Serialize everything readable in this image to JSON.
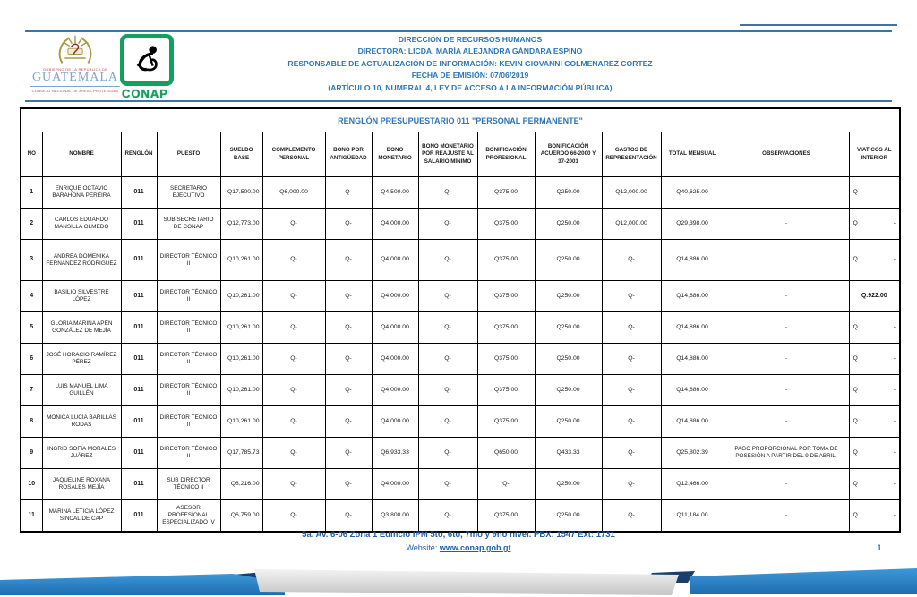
{
  "header": {
    "lines": [
      "DIRECCIÓN DE RECURSOS HUMANOS",
      "DIRECTORA: LICDA. MARÍA ALEJANDRA GÁNDARA ESPINO",
      "RESPONSABLE DE ACTUALIZACIÓN DE INFORMACIÓN: KEVIN GIOVANNI COLMENAREZ CORTEZ",
      "FECHA DE EMISIÓN: 07/06/2019",
      "(ARTÍCULO 10, NUMERAL 4, LEY DE ACCESO A LA INFORMACIÓN PÚBLICA)"
    ],
    "logos": {
      "guatemala": {
        "top_text": "GOBIERNO DE LA REPÚBLICA DE",
        "title": "GUATEMALA",
        "bottom_text": "CONSEJO NACIONAL DE ÁREAS PROTEGIDAS"
      },
      "conap": {
        "label": "CONAP"
      }
    },
    "colors": {
      "accent_blue": "#2E75B6",
      "conap_green": "#12A05F",
      "guatemala_gold": "#A89B45",
      "logo_red": "#B94A48"
    }
  },
  "table": {
    "title": "RENGLÓN PRESUPUESTARIO 011 \"PERSONAL PERMANENTE\"",
    "columns": [
      {
        "key": "no",
        "label": "NO"
      },
      {
        "key": "nombre",
        "label": "NOMBRE"
      },
      {
        "key": "renglon",
        "label": "RENGLÓN"
      },
      {
        "key": "puesto",
        "label": "PUESTO"
      },
      {
        "key": "sueldo_base",
        "label": "SUELDO BASE"
      },
      {
        "key": "complemento_personal",
        "label": "COMPLEMENTO PERSONAL"
      },
      {
        "key": "bono_antiguedad",
        "label": "BONO POR ANTIGÜEDAD"
      },
      {
        "key": "bono_monetario",
        "label": "BONO MONETARIO"
      },
      {
        "key": "bono_reajuste",
        "label": "BONO MONETARIO POR REAJUSTE AL SALARIO MÍNIMO"
      },
      {
        "key": "bonificacion_profesional",
        "label": "BONIFICACIÓN PROFESIONAL"
      },
      {
        "key": "bonificacion_acuerdo",
        "label": "BONIFICACIÓN ACUERDO 66-2000 Y 37-2001"
      },
      {
        "key": "gastos_representacion",
        "label": "GASTOS DE REPRESENTACIÓN"
      },
      {
        "key": "total_mensual",
        "label": "TOTAL MENSUAL"
      },
      {
        "key": "observaciones",
        "label": "OBSERVACIONES"
      },
      {
        "key": "viaticos",
        "label": "VIATICOS AL INTERIOR"
      }
    ],
    "rows": [
      {
        "no": "1",
        "nombre": "ENRIQUE OCTAVIO BARAHONA PEREIRA",
        "renglon": "011",
        "puesto": "SECRETARIO EJECUTIVO",
        "sueldo_base": "Q17,500.00",
        "complemento_personal": "Q6,000.00",
        "bono_antiguedad": "Q-",
        "bono_monetario": "Q4,500.00",
        "bono_reajuste": "Q-",
        "bonificacion_profesional": "Q375.00",
        "bonificacion_acuerdo": "Q250.00",
        "gastos_representacion": "Q12,000.00",
        "total_mensual": "Q40,625.00",
        "observaciones": "-",
        "viaticos": {
          "pre": "Q",
          "val": "-"
        }
      },
      {
        "no": "2",
        "nombre": "CARLOS EDUARDO MANSILLA OLMEDO",
        "renglon": "011",
        "puesto": "SUB SECRETARIO DE CONAP",
        "sueldo_base": "Q12,773.00",
        "complemento_personal": "Q-",
        "bono_antiguedad": "Q-",
        "bono_monetario": "Q4,000.00",
        "bono_reajuste": "Q-",
        "bonificacion_profesional": "Q375.00",
        "bonificacion_acuerdo": "Q250.00",
        "gastos_representacion": "Q12,000.00",
        "total_mensual": "Q29,398.00",
        "observaciones": "-",
        "viaticos": {
          "pre": "Q",
          "val": "-"
        }
      },
      {
        "no": "3",
        "nombre": "ANDREA DOMENIKA FERNANDEZ RODRIGUEZ",
        "renglon": "011",
        "puesto": "DIRECTOR TÉCNICO II",
        "sueldo_base": "Q10,261.00",
        "complemento_personal": "Q-",
        "bono_antiguedad": "Q-",
        "bono_monetario": "Q4,000.00",
        "bono_reajuste": "Q-",
        "bonificacion_profesional": "Q375.00",
        "bonificacion_acuerdo": "Q250.00",
        "gastos_representacion": "Q-",
        "total_mensual": "Q14,886.00",
        "observaciones": "-",
        "viaticos": {
          "pre": "Q",
          "val": "-"
        },
        "tall": true
      },
      {
        "no": "4",
        "nombre": "BASILIO SILVESTRE LÓPEZ",
        "renglon": "011",
        "puesto": "DIRECTOR TÉCNICO II",
        "sueldo_base": "Q10,261.00",
        "complemento_personal": "Q-",
        "bono_antiguedad": "Q-",
        "bono_monetario": "Q4,000.00",
        "bono_reajuste": "Q-",
        "bonificacion_profesional": "Q375.00",
        "bonificacion_acuerdo": "Q250.00",
        "gastos_representacion": "Q-",
        "total_mensual": "Q14,886.00",
        "observaciones": "-",
        "viaticos": {
          "pre": "",
          "val": "Q.922.00",
          "bold": true
        }
      },
      {
        "no": "5",
        "nombre": "GLORIA MARINA APÉN GONZÁLEZ DE MEJÍA",
        "renglon": "011",
        "puesto": "DIRECTOR TÉCNICO II",
        "sueldo_base": "Q10,261.00",
        "complemento_personal": "Q-",
        "bono_antiguedad": "Q-",
        "bono_monetario": "Q4,000.00",
        "bono_reajuste": "Q-",
        "bonificacion_profesional": "Q375.00",
        "bonificacion_acuerdo": "Q250.00",
        "gastos_representacion": "Q-",
        "total_mensual": "Q14,886.00",
        "observaciones": "-",
        "viaticos": {
          "pre": "Q",
          "val": "-"
        }
      },
      {
        "no": "6",
        "nombre": "JOSÉ HORACIO RAMÍREZ PÉREZ",
        "renglon": "011",
        "puesto": "DIRECTOR TÉCNICO II",
        "sueldo_base": "Q10,261.00",
        "complemento_personal": "Q-",
        "bono_antiguedad": "Q-",
        "bono_monetario": "Q4,000.00",
        "bono_reajuste": "Q-",
        "bonificacion_profesional": "Q375.00",
        "bonificacion_acuerdo": "Q250.00",
        "gastos_representacion": "Q-",
        "total_mensual": "Q14,886.00",
        "observaciones": "-",
        "viaticos": {
          "pre": "Q",
          "val": "-"
        }
      },
      {
        "no": "7",
        "nombre": "LUIS MANUEL LIMA GUILLÉN",
        "renglon": "011",
        "puesto": "DIRECTOR TÉCNICO II",
        "sueldo_base": "Q10,261.00",
        "complemento_personal": "Q-",
        "bono_antiguedad": "Q-",
        "bono_monetario": "Q4,000.00",
        "bono_reajuste": "Q-",
        "bonificacion_profesional": "Q375.00",
        "bonificacion_acuerdo": "Q250.00",
        "gastos_representacion": "Q-",
        "total_mensual": "Q14,886.00",
        "observaciones": "-",
        "viaticos": {
          "pre": "Q",
          "val": "-"
        }
      },
      {
        "no": "8",
        "nombre": "MÓNICA LUCÍA BARILLAS RODAS",
        "renglon": "011",
        "puesto": "DIRECTOR TÉCNICO II",
        "sueldo_base": "Q10,261.00",
        "complemento_personal": "Q-",
        "bono_antiguedad": "Q-",
        "bono_monetario": "Q4,000.00",
        "bono_reajuste": "Q-",
        "bonificacion_profesional": "Q375.00",
        "bonificacion_acuerdo": "Q250.00",
        "gastos_representacion": "Q-",
        "total_mensual": "Q14,886.00",
        "observaciones": "-",
        "viaticos": {
          "pre": "Q",
          "val": "-"
        }
      },
      {
        "no": "9",
        "nombre": "INGRID SOFIA MORALES JUÁREZ",
        "renglon": "011",
        "puesto": "DIRECTOR TÉCNICO II",
        "sueldo_base": "Q17,785.73",
        "complemento_personal": "Q-",
        "bono_antiguedad": "Q-",
        "bono_monetario": "Q6,933.33",
        "bono_reajuste": "Q-",
        "bonificacion_profesional": "Q650.00",
        "bonificacion_acuerdo": "Q433.33",
        "gastos_representacion": "Q-",
        "total_mensual": "Q25,802.39",
        "observaciones": "PAGO PROPORCIONAL POR TOMA DE POSESIÓN A PARTIR DEL 9 DE ABRIL.",
        "viaticos": {
          "pre": "Q",
          "val": "-"
        }
      },
      {
        "no": "10",
        "nombre": "JAQUELINE ROXANA ROSALES MEJÍA",
        "renglon": "011",
        "puesto": "SUB DIRECTOR TÉCNICO II",
        "sueldo_base": "Q8,216.00",
        "complemento_personal": "Q-",
        "bono_antiguedad": "Q-",
        "bono_monetario": "Q4,000.00",
        "bono_reajuste": "Q-",
        "bonificacion_profesional": "Q-",
        "bonificacion_acuerdo": "Q250.00",
        "gastos_representacion": "Q-",
        "total_mensual": "Q12,466.00",
        "observaciones": "-",
        "viaticos": {
          "pre": "Q",
          "val": "-"
        }
      },
      {
        "no": "11",
        "nombre": "MARINA LETICIA LÓPEZ SINCAL DE CAP",
        "renglon": "011",
        "puesto": "ASESOR PROFESIONAL ESPECIALIZADO IV",
        "sueldo_base": "Q6,759.00",
        "complemento_personal": "Q-",
        "bono_antiguedad": "Q-",
        "bono_monetario": "Q3,800.00",
        "bono_reajuste": "Q-",
        "bonificacion_profesional": "Q375.00",
        "bonificacion_acuerdo": "Q250.00",
        "gastos_representacion": "Q-",
        "total_mensual": "Q11,184.00",
        "observaciones": "-",
        "viaticos": {
          "pre": "Q",
          "val": "-"
        }
      }
    ]
  },
  "footer": {
    "address": "5a. Av. 6-06 Zona 1 Edificio IPM 5to, 6to, 7mo y 9no nivel. PBX: 1547 Ext: 1731",
    "website_label": "Website:",
    "website_url": "www.conap.gob.gt",
    "page_number": "1"
  }
}
